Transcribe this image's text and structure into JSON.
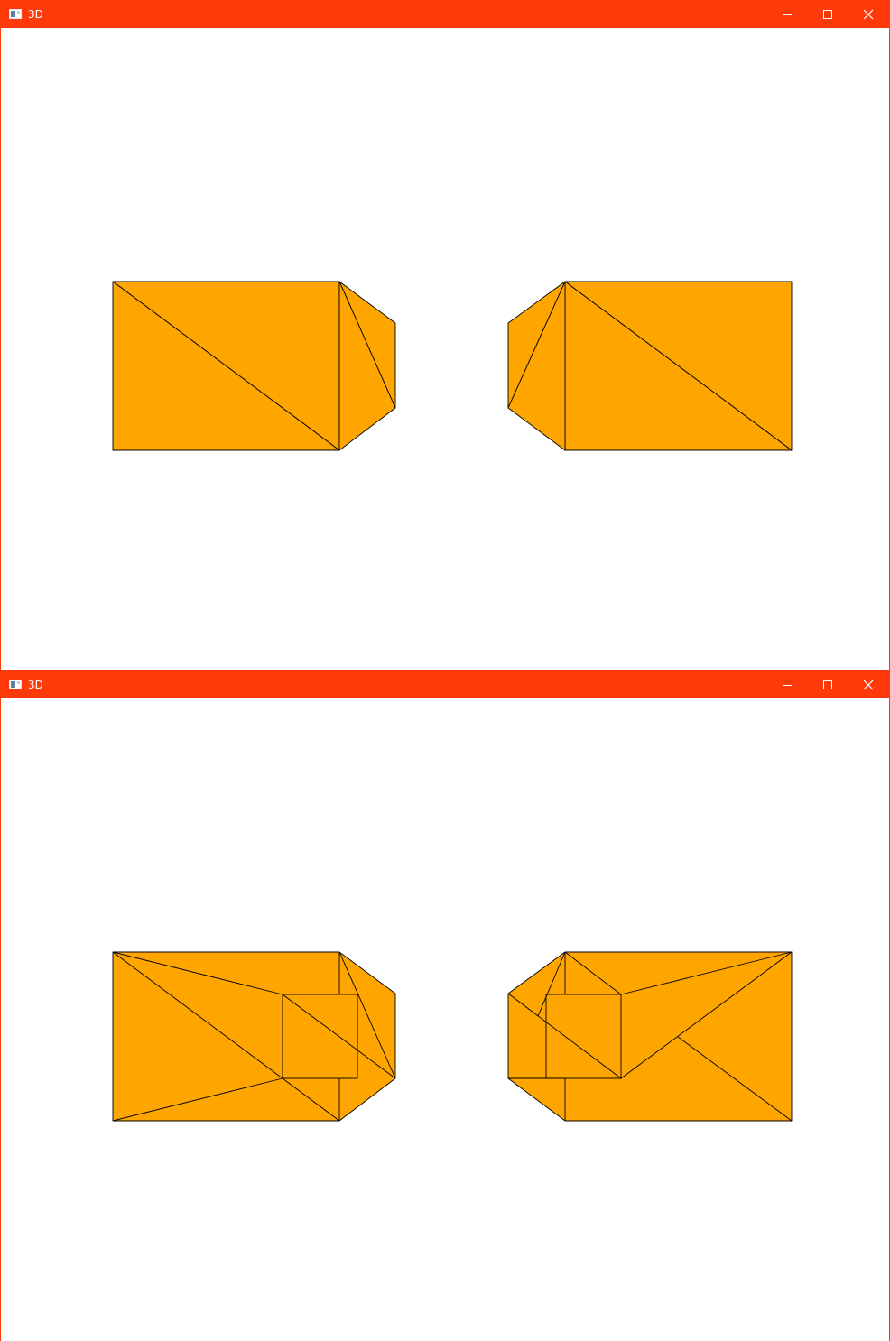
{
  "windows": [
    {
      "title": "3D",
      "icons": {
        "app": "window-app-icon",
        "minimize": "minimize-icon",
        "maximize": "maximize-icon",
        "close": "close-icon"
      }
    },
    {
      "title": "3D",
      "icons": {
        "app": "window-app-icon",
        "minimize": "minimize-icon",
        "maximize": "maximize-icon",
        "close": "close-icon"
      }
    }
  ],
  "colors": {
    "titlebar": "#ff3a0a",
    "shape_fill": "#ffa500",
    "edge": "#000000",
    "background": "#ffffff"
  }
}
